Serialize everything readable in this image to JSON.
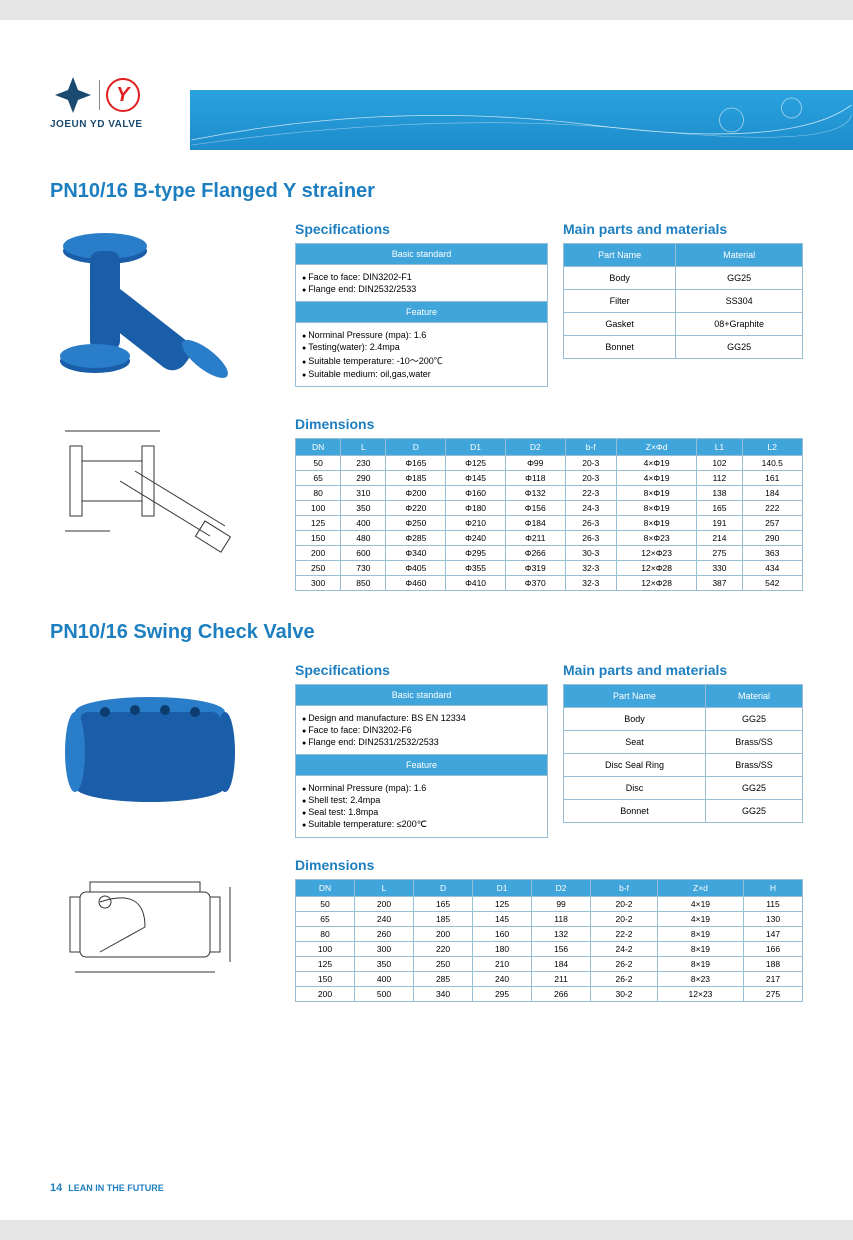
{
  "brand": "JOEUN YD VALVE",
  "footer": {
    "page": "14",
    "tagline": "LEAN IN THE FUTURE"
  },
  "colors": {
    "accent": "#1d7fc0",
    "table_header": "#3fa5db",
    "border": "#9abdd6"
  },
  "product1": {
    "title": "PN10/16 B-type Flanged Y strainer",
    "specs_label": "Specifications",
    "basic_standard_label": "Basic standard",
    "basic_standard": [
      "Face to face: DIN3202-F1",
      "Flange end: DIN2532/2533"
    ],
    "feature_label": "Feature",
    "features": [
      "Norminal Pressure (mpa): 1.6",
      "Testing(water): 2.4mpa",
      "Suitable temperature: -10～200℃",
      "Suitable medium: oil,gas,water"
    ],
    "materials_label": "Main parts and materials",
    "materials_headers": [
      "Part Name",
      "Material"
    ],
    "materials": [
      [
        "Body",
        "GG25"
      ],
      [
        "Filter",
        "SS304"
      ],
      [
        "Gasket",
        "08+Graphite"
      ],
      [
        "Bonnet",
        "GG25"
      ]
    ],
    "dimensions_label": "Dimensions",
    "dim_headers": [
      "DN",
      "L",
      "D",
      "D1",
      "D2",
      "b-f",
      "Z×Φd",
      "L1",
      "L2"
    ],
    "dim_rows": [
      [
        "50",
        "230",
        "Φ165",
        "Φ125",
        "Φ99",
        "20-3",
        "4×Φ19",
        "102",
        "140.5"
      ],
      [
        "65",
        "290",
        "Φ185",
        "Φ145",
        "Φ118",
        "20-3",
        "4×Φ19",
        "112",
        "161"
      ],
      [
        "80",
        "310",
        "Φ200",
        "Φ160",
        "Φ132",
        "22-3",
        "8×Φ19",
        "138",
        "184"
      ],
      [
        "100",
        "350",
        "Φ220",
        "Φ180",
        "Φ156",
        "24-3",
        "8×Φ19",
        "165",
        "222"
      ],
      [
        "125",
        "400",
        "Φ250",
        "Φ210",
        "Φ184",
        "26-3",
        "8×Φ19",
        "191",
        "257"
      ],
      [
        "150",
        "480",
        "Φ285",
        "Φ240",
        "Φ211",
        "26-3",
        "8×Φ23",
        "214",
        "290"
      ],
      [
        "200",
        "600",
        "Φ340",
        "Φ295",
        "Φ266",
        "30-3",
        "12×Φ23",
        "275",
        "363"
      ],
      [
        "250",
        "730",
        "Φ405",
        "Φ355",
        "Φ319",
        "32-3",
        "12×Φ28",
        "330",
        "434"
      ],
      [
        "300",
        "850",
        "Φ460",
        "Φ410",
        "Φ370",
        "32-3",
        "12×Φ28",
        "387",
        "542"
      ]
    ]
  },
  "product2": {
    "title": "PN10/16 Swing Check Valve",
    "specs_label": "Specifications",
    "basic_standard_label": "Basic standard",
    "basic_standard": [
      "Design and manufacture: BS EN 12334",
      "Face to face: DIN3202-F6",
      "Flange end: DIN2531/2532/2533"
    ],
    "feature_label": "Feature",
    "features": [
      "Norminal Pressure (mpa): 1.6",
      "Shell test: 2.4mpa",
      "Seal test: 1.8mpa",
      "Suitable temperature: ≤200℃"
    ],
    "materials_label": "Main parts and materials",
    "materials_headers": [
      "Part Name",
      "Material"
    ],
    "materials": [
      [
        "Body",
        "GG25"
      ],
      [
        "Seat",
        "Brass/SS"
      ],
      [
        "Disc Seal Ring",
        "Brass/SS"
      ],
      [
        "Disc",
        "GG25"
      ],
      [
        "Bonnet",
        "GG25"
      ]
    ],
    "dimensions_label": "Dimensions",
    "dim_headers": [
      "DN",
      "L",
      "D",
      "D1",
      "D2",
      "b-f",
      "Z×d",
      "H"
    ],
    "dim_rows": [
      [
        "50",
        "200",
        "165",
        "125",
        "99",
        "20-2",
        "4×19",
        "115"
      ],
      [
        "65",
        "240",
        "185",
        "145",
        "118",
        "20-2",
        "4×19",
        "130"
      ],
      [
        "80",
        "260",
        "200",
        "160",
        "132",
        "22-2",
        "8×19",
        "147"
      ],
      [
        "100",
        "300",
        "220",
        "180",
        "156",
        "24-2",
        "8×19",
        "166"
      ],
      [
        "125",
        "350",
        "250",
        "210",
        "184",
        "26-2",
        "8×19",
        "188"
      ],
      [
        "150",
        "400",
        "285",
        "240",
        "211",
        "26-2",
        "8×23",
        "217"
      ],
      [
        "200",
        "500",
        "340",
        "295",
        "266",
        "30-2",
        "12×23",
        "275"
      ]
    ]
  }
}
